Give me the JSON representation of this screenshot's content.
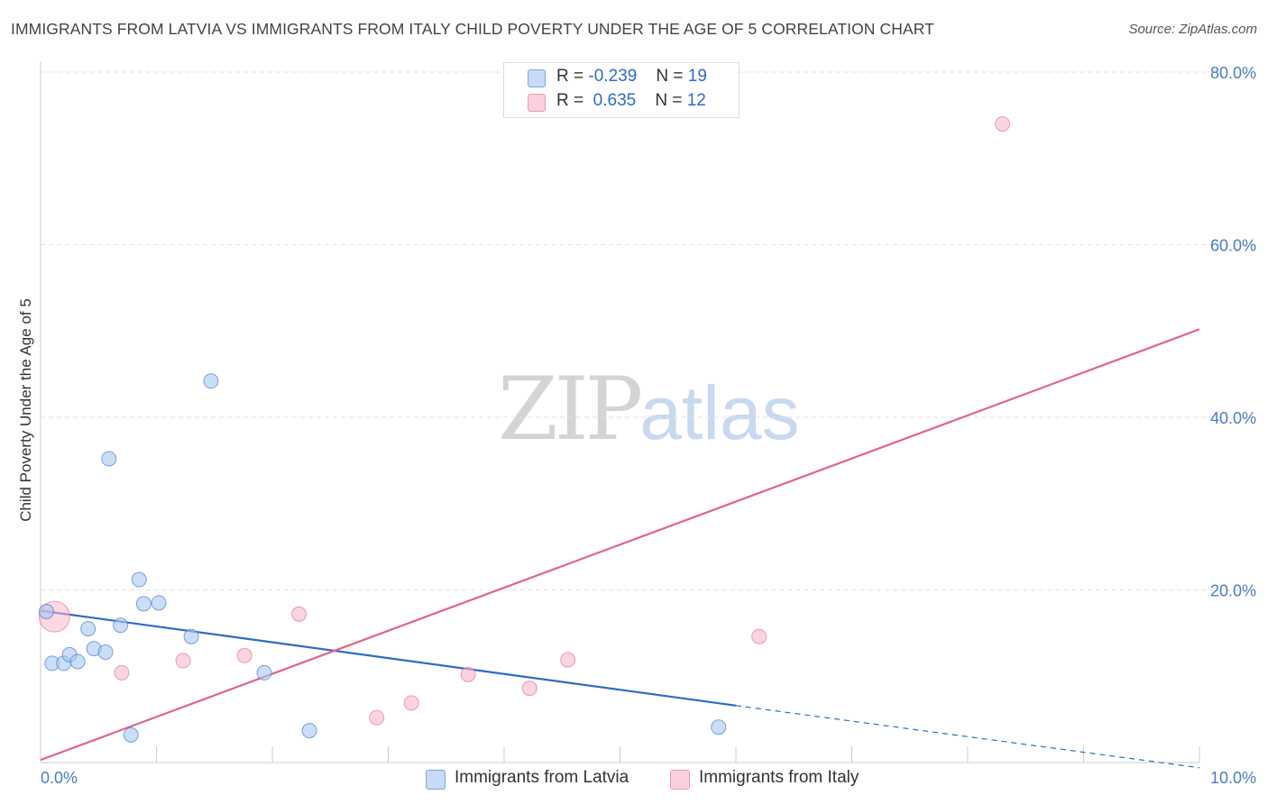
{
  "header": {
    "title": "IMMIGRANTS FROM LATVIA VS IMMIGRANTS FROM ITALY CHILD POVERTY UNDER THE AGE OF 5 CORRELATION CHART",
    "source": "Source: ZipAtlas.com"
  },
  "watermark": {
    "zip": "ZIP",
    "atlas": "atlas"
  },
  "stats": {
    "latvia": {
      "r_label": "R =",
      "r_value": "-0.239",
      "n_label": "N =",
      "n_value": "19",
      "color": "#a9c8f2"
    },
    "italy": {
      "r_label": "R =",
      "r_value": "0.635",
      "n_label": "N =",
      "n_value": "12",
      "color": "#f7b8cb"
    }
  },
  "legend": {
    "latvia": "Immigrants from Latvia",
    "italy": "Immigrants from Italy"
  },
  "chart_data": {
    "type": "scatter",
    "title": "IMMIGRANTS FROM LATVIA VS IMMIGRANTS FROM ITALY CHILD POVERTY UNDER THE AGE OF 5 CORRELATION CHART",
    "xlabel": "",
    "ylabel": "Child Poverty Under the Age of 5",
    "xlim": [
      0,
      10
    ],
    "ylim": [
      0,
      80
    ],
    "x_tick_labels": [
      "0.0%",
      "10.0%"
    ],
    "y_ticks": [
      20,
      40,
      60,
      80
    ],
    "y_tick_labels": [
      "20.0%",
      "40.0%",
      "60.0%",
      "80.0%"
    ],
    "x_minor_ticks": [
      1,
      2,
      3,
      4,
      5,
      6,
      7,
      8,
      9,
      10
    ],
    "grid": true,
    "series": [
      {
        "name": "Immigrants from Latvia",
        "color": "#a9c8f2",
        "stroke": "#4a7cc9",
        "line_color": "#2f6bc6",
        "points": [
          {
            "x": 0.05,
            "y": 17.5
          },
          {
            "x": 0.1,
            "y": 11.5
          },
          {
            "x": 0.2,
            "y": 11.5
          },
          {
            "x": 0.25,
            "y": 12.5
          },
          {
            "x": 0.32,
            "y": 11.7
          },
          {
            "x": 0.41,
            "y": 15.5
          },
          {
            "x": 0.46,
            "y": 13.2
          },
          {
            "x": 0.56,
            "y": 12.8
          },
          {
            "x": 0.59,
            "y": 35.2
          },
          {
            "x": 0.69,
            "y": 15.9
          },
          {
            "x": 0.78,
            "y": 3.2
          },
          {
            "x": 0.85,
            "y": 21.2
          },
          {
            "x": 0.89,
            "y": 18.4
          },
          {
            "x": 1.02,
            "y": 18.5
          },
          {
            "x": 1.3,
            "y": 14.6
          },
          {
            "x": 1.47,
            "y": 44.2
          },
          {
            "x": 1.93,
            "y": 10.4
          },
          {
            "x": 2.32,
            "y": 3.7
          },
          {
            "x": 5.85,
            "y": 4.1
          }
        ],
        "trend": {
          "x_start": 0.0,
          "y_start": 17.6,
          "x_end": 6.0,
          "y_end": 6.6,
          "x_dash_end": 10.0,
          "y_dash_end": -0.6
        }
      },
      {
        "name": "Immigrants from Italy",
        "color": "#f7b8cb",
        "stroke": "#e07898",
        "line_color": "#e0648c",
        "points": [
          {
            "x": 0.12,
            "y": 16.9,
            "big": true
          },
          {
            "x": 0.7,
            "y": 10.4
          },
          {
            "x": 1.23,
            "y": 11.8
          },
          {
            "x": 1.76,
            "y": 12.4
          },
          {
            "x": 2.23,
            "y": 17.2
          },
          {
            "x": 2.9,
            "y": 5.2
          },
          {
            "x": 3.2,
            "y": 6.9
          },
          {
            "x": 3.69,
            "y": 10.2
          },
          {
            "x": 4.22,
            "y": 8.6
          },
          {
            "x": 4.55,
            "y": 11.9
          },
          {
            "x": 6.2,
            "y": 14.6
          },
          {
            "x": 8.3,
            "y": 74.0
          }
        ],
        "trend": {
          "x_start": 0.0,
          "y_start": 0.3,
          "x_end": 10.0,
          "y_end": 50.2
        }
      }
    ]
  }
}
